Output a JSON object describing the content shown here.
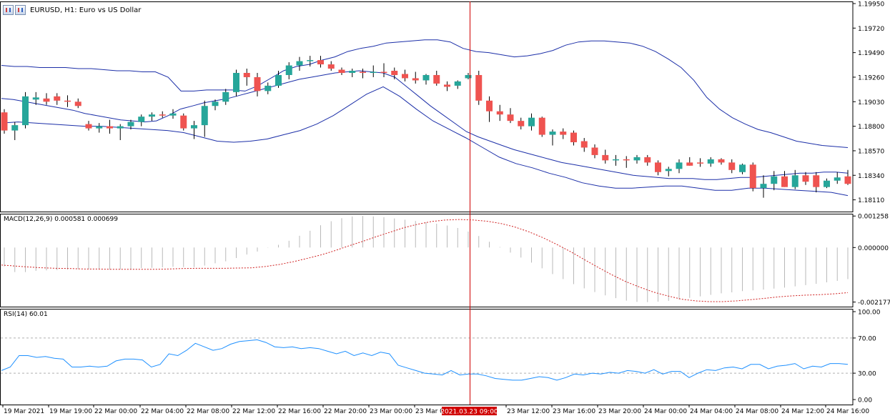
{
  "chart_data": [
    {
      "type": "candlestick",
      "title": "EURUSD, H1:  Euro vs US Dollar",
      "ylim": [
        1.18,
        1.1997
      ],
      "y_ticks": [
        "1.19950",
        "1.19720",
        "1.19490",
        "1.19260",
        "1.19030",
        "1.18800",
        "1.18570",
        "1.18340",
        "1.18110"
      ],
      "x_labels": [
        "19 Mar 2021",
        "19 Mar 19:00",
        "22 Mar 00:00",
        "22 Mar 04:00",
        "22 Mar 08:00",
        "22 Mar 12:00",
        "22 Mar 16:00",
        "22 Mar 20:00",
        "23 Mar 00:00",
        "23 Mar 04:00",
        "23 Mar 12:00",
        "23 Mar 16:00",
        "23 Mar 20:00",
        "24 Mar 00:00",
        "24 Mar 04:00",
        "24 Mar 08:00",
        "24 Mar 12:00",
        "24 Mar 16:00"
      ],
      "crosshair_label": "2021.03.23 09:00",
      "colors": {
        "bull": "#26a69a",
        "bear": "#ef5350",
        "bands": "#1c2fa8",
        "crosshair": "#d00000"
      },
      "candles": [
        [
          1.1893,
          1.1896,
          1.1873,
          1.1876
        ],
        [
          1.1876,
          1.1884,
          1.1867,
          1.1881
        ],
        [
          1.1881,
          1.1912,
          1.1878,
          1.1908
        ],
        [
          1.1905,
          1.1912,
          1.19,
          1.1907
        ],
        [
          1.1906,
          1.1911,
          1.19,
          1.1903
        ],
        [
          1.1908,
          1.1911,
          1.19,
          1.1904
        ],
        [
          1.1904,
          1.1909,
          1.1898,
          1.1903
        ],
        [
          1.1903,
          1.1906,
          1.1897,
          1.1899
        ],
        [
          1.1882,
          1.1885,
          1.1876,
          1.1878
        ],
        [
          1.1878,
          1.1883,
          1.1874,
          1.188
        ],
        [
          1.188,
          1.1886,
          1.1873,
          1.1878
        ],
        [
          1.1878,
          1.1882,
          1.1867,
          1.188
        ],
        [
          1.188,
          1.1886,
          1.1877,
          1.1884
        ],
        [
          1.1884,
          1.1891,
          1.188,
          1.1889
        ],
        [
          1.1889,
          1.1893,
          1.1885,
          1.1891
        ],
        [
          1.1891,
          1.1894,
          1.1888,
          1.189
        ],
        [
          1.189,
          1.1896,
          1.1887,
          1.1892
        ],
        [
          1.189,
          1.1892,
          1.1876,
          1.1878
        ],
        [
          1.1878,
          1.1885,
          1.1868,
          1.1881
        ],
        [
          1.1881,
          1.1904,
          1.187,
          1.1899
        ],
        [
          1.1899,
          1.1905,
          1.1895,
          1.1903
        ],
        [
          1.1903,
          1.1915,
          1.19,
          1.1912
        ],
        [
          1.1912,
          1.1933,
          1.1908,
          1.193
        ],
        [
          1.193,
          1.1934,
          1.1918,
          1.1926
        ],
        [
          1.1926,
          1.193,
          1.1908,
          1.1913
        ],
        [
          1.1913,
          1.1921,
          1.191,
          1.1918
        ],
        [
          1.1918,
          1.1932,
          1.1916,
          1.1928
        ],
        [
          1.1928,
          1.194,
          1.1924,
          1.1937
        ],
        [
          1.1937,
          1.1945,
          1.1932,
          1.1941
        ],
        [
          1.1941,
          1.1946,
          1.1936,
          1.1942
        ],
        [
          1.1942,
          1.1946,
          1.1935,
          1.1938
        ],
        [
          1.1938,
          1.1941,
          1.1932,
          1.1934
        ],
        [
          1.1933,
          1.1935,
          1.1928,
          1.193
        ],
        [
          1.193,
          1.1934,
          1.1926,
          1.1932
        ],
        [
          1.1931,
          1.1934,
          1.1925,
          1.193
        ],
        [
          1.193,
          1.1937,
          1.1926,
          1.1931
        ],
        [
          1.1931,
          1.1939,
          1.1926,
          1.193
        ],
        [
          1.1932,
          1.1935,
          1.1924,
          1.1928
        ],
        [
          1.1929,
          1.1933,
          1.1922,
          1.1925
        ],
        [
          1.1925,
          1.1931,
          1.192,
          1.1923
        ],
        [
          1.1923,
          1.1929,
          1.1919,
          1.1928
        ],
        [
          1.1928,
          1.1932,
          1.1918,
          1.192
        ],
        [
          1.1919,
          1.1922,
          1.1913,
          1.1917
        ],
        [
          1.1918,
          1.1923,
          1.1915,
          1.1922
        ],
        [
          1.1925,
          1.193,
          1.1924,
          1.1928
        ],
        [
          1.1928,
          1.1932,
          1.19,
          1.1904
        ],
        [
          1.1904,
          1.1908,
          1.1884,
          1.1894
        ],
        [
          1.1894,
          1.19,
          1.1885,
          1.1891
        ],
        [
          1.1891,
          1.1897,
          1.1883,
          1.1885
        ],
        [
          1.1885,
          1.1888,
          1.1877,
          1.188
        ],
        [
          1.188,
          1.1892,
          1.1876,
          1.1888
        ],
        [
          1.1888,
          1.1889,
          1.187,
          1.1872
        ],
        [
          1.1872,
          1.1877,
          1.1862,
          1.1875
        ],
        [
          1.1875,
          1.1878,
          1.1868,
          1.1872
        ],
        [
          1.1874,
          1.1876,
          1.1862,
          1.1865
        ],
        [
          1.1866,
          1.1869,
          1.1856,
          1.186
        ],
        [
          1.186,
          1.1863,
          1.185,
          1.1853
        ],
        [
          1.1853,
          1.1858,
          1.1845,
          1.1848
        ],
        [
          1.1848,
          1.1853,
          1.1843,
          1.1849
        ],
        [
          1.1849,
          1.1852,
          1.1841,
          1.1848
        ],
        [
          1.1848,
          1.1853,
          1.1845,
          1.1851
        ],
        [
          1.1851,
          1.1853,
          1.1843,
          1.1846
        ],
        [
          1.1846,
          1.1848,
          1.1834,
          1.1837
        ],
        [
          1.1838,
          1.1842,
          1.1833,
          1.184
        ],
        [
          1.184,
          1.1849,
          1.1836,
          1.1846
        ],
        [
          1.1846,
          1.1851,
          1.1843,
          1.1843
        ],
        [
          1.1846,
          1.185,
          1.1842,
          1.1845
        ],
        [
          1.1845,
          1.1851,
          1.1842,
          1.1849
        ],
        [
          1.1849,
          1.185,
          1.1844,
          1.1846
        ],
        [
          1.1846,
          1.1849,
          1.1836,
          1.1839
        ],
        [
          1.1837,
          1.1845,
          1.1835,
          1.1844
        ],
        [
          1.1844,
          1.1846,
          1.1819,
          1.1822
        ],
        [
          1.1822,
          1.1834,
          1.1813,
          1.1826
        ],
        [
          1.1826,
          1.1838,
          1.182,
          1.1833
        ],
        [
          1.1833,
          1.1838,
          1.1823,
          1.1823
        ],
        [
          1.1823,
          1.1839,
          1.1821,
          1.1834
        ],
        [
          1.1834,
          1.1837,
          1.1825,
          1.1828
        ],
        [
          1.1834,
          1.1837,
          1.1818,
          1.1823
        ],
        [
          1.1823,
          1.1831,
          1.1822,
          1.1829
        ],
        [
          1.1829,
          1.1837,
          1.1826,
          1.1832
        ],
        [
          1.1833,
          1.1839,
          1.1825,
          1.1826
        ]
      ],
      "bands_upper": [
        1.1937,
        1.1936,
        1.1936,
        1.1935,
        1.1935,
        1.1935,
        1.1934,
        1.1934,
        1.1933,
        1.1932,
        1.1932,
        1.1931,
        1.1931,
        1.1926,
        1.1913,
        1.1913,
        1.1914,
        1.1914,
        1.1914,
        1.1913,
        1.1918,
        1.1925,
        1.1932,
        1.1936,
        1.1938,
        1.1942,
        1.1945,
        1.195,
        1.1953,
        1.1955,
        1.1958,
        1.1959,
        1.196,
        1.1961,
        1.1961,
        1.1959,
        1.1953,
        1.195,
        1.1949,
        1.1947,
        1.1945,
        1.1946,
        1.1948,
        1.1951,
        1.1956,
        1.1959,
        1.196,
        1.196,
        1.1959,
        1.1958,
        1.1955,
        1.195,
        1.1943,
        1.1935,
        1.1923,
        1.1907,
        1.1896,
        1.1888,
        1.1882,
        1.1877,
        1.1874,
        1.187,
        1.1866,
        1.1864,
        1.1862,
        1.1861,
        1.186
      ],
      "bands_middle": [
        1.1906,
        1.1905,
        1.1903,
        1.1901,
        1.1899,
        1.1897,
        1.1895,
        1.1892,
        1.189,
        1.1888,
        1.1886,
        1.1885,
        1.1884,
        1.1885,
        1.189,
        1.1896,
        1.1899,
        1.1902,
        1.1904,
        1.1906,
        1.1909,
        1.1912,
        1.1915,
        1.1918,
        1.1921,
        1.1924,
        1.1926,
        1.1928,
        1.193,
        1.1931,
        1.1932,
        1.1931,
        1.193,
        1.1926,
        1.1917,
        1.1908,
        1.1899,
        1.1891,
        1.1883,
        1.1875,
        1.187,
        1.1866,
        1.1862,
        1.1858,
        1.1855,
        1.1852,
        1.1849,
        1.1846,
        1.1844,
        1.1842,
        1.184,
        1.1838,
        1.1836,
        1.1834,
        1.1833,
        1.1832,
        1.1831,
        1.1831,
        1.1831,
        1.183,
        1.183,
        1.1831,
        1.1832,
        1.1832,
        1.1833,
        1.1834,
        1.1835,
        1.1836,
        1.1836,
        1.1837,
        1.1837,
        1.1836
      ],
      "bands_lower": [
        1.1883,
        1.1884,
        1.1883,
        1.1882,
        1.1881,
        1.188,
        1.188,
        1.1879,
        1.1878,
        1.1877,
        1.1876,
        1.1874,
        1.187,
        1.1866,
        1.1865,
        1.1866,
        1.1868,
        1.1872,
        1.1876,
        1.1882,
        1.189,
        1.19,
        1.191,
        1.1917,
        1.1908,
        1.1896,
        1.1885,
        1.1877,
        1.1869,
        1.186,
        1.1851,
        1.1845,
        1.1841,
        1.1836,
        1.1832,
        1.1827,
        1.1824,
        1.1822,
        1.1822,
        1.1823,
        1.1824,
        1.1824,
        1.1822,
        1.182,
        1.182,
        1.1822,
        1.1822,
        1.1821,
        1.182,
        1.1819,
        1.1818,
        1.1815
      ]
    },
    {
      "type": "bar",
      "title": "MACD(12,26,9) 0.000581 0.000699",
      "ylim": [
        -0.00236,
        0.00135
      ],
      "y_ticks": [
        "0.001258",
        "0.000000",
        "-0.002177"
      ],
      "colors": {
        "hist": "#b9b9b9",
        "signal": "#d02020"
      },
      "histogram": [
        -0.00075,
        -0.00098,
        -0.00098,
        -0.00093,
        -0.00091,
        -0.0009,
        -0.00088,
        -0.00086,
        -0.00086,
        -0.00087,
        -0.00088,
        -0.00087,
        -0.00086,
        -0.00082,
        -0.00081,
        -0.00079,
        -0.00077,
        -0.00078,
        -0.00078,
        -0.00072,
        -0.00063,
        -0.00055,
        -0.00042,
        -0.00028,
        -0.00016,
        -1e-05,
        0.00011,
        0.00027,
        0.00047,
        0.00067,
        0.00089,
        0.00105,
        0.00117,
        0.00124,
        0.00126,
        0.00124,
        0.00121,
        0.00116,
        0.00111,
        0.00106,
        0.00101,
        0.00095,
        0.00088,
        0.00078,
        0.00064,
        0.00046,
        0.00023,
        2e-05,
        -0.0002,
        -0.0004,
        -0.0006,
        -0.00083,
        -0.00106,
        -0.00126,
        -0.00146,
        -0.00163,
        -0.00178,
        -0.00191,
        -0.00202,
        -0.00212,
        -0.00217,
        -0.00218,
        -0.00216,
        -0.00213,
        -0.00207,
        -0.00201,
        -0.00195,
        -0.00189,
        -0.00183,
        -0.00179,
        -0.00174,
        -0.00171,
        -0.00168,
        -0.00164,
        -0.0016,
        -0.00155,
        -0.0015,
        -0.00145,
        -0.00139,
        -0.00133,
        -0.00126
      ],
      "signal": [
        -0.0007,
        -0.00074,
        -0.00078,
        -0.00081,
        -0.00083,
        -0.00084,
        -0.00086,
        -0.00086,
        -0.00087,
        -0.00087,
        -0.00087,
        -0.00087,
        -0.00086,
        -0.00084,
        -0.00083,
        -0.00083,
        -0.00083,
        -0.00082,
        -0.00081,
        -0.00076,
        -0.00068,
        -0.00057,
        -0.00044,
        -0.0003,
        -0.00013,
        6e-05,
        0.00024,
        0.00043,
        0.00061,
        0.00079,
        0.00093,
        0.00104,
        0.0011,
        0.00112,
        0.0011,
        0.00105,
        0.00096,
        0.00082,
        0.00063,
        0.0004,
        0.00013,
        -0.00016,
        -0.00048,
        -0.00079,
        -0.00109,
        -0.00136,
        -0.00158,
        -0.00178,
        -0.00193,
        -0.00206,
        -0.00213,
        -0.00216,
        -0.00216,
        -0.00213,
        -0.00208,
        -0.00203,
        -0.00197,
        -0.00193,
        -0.0019,
        -0.00188,
        -0.00185,
        -0.0018
      ]
    },
    {
      "type": "line",
      "title": "RSI(14) 60.01",
      "ylim": [
        0,
        100
      ],
      "y_ticks": [
        "100.00",
        "70.00",
        "30.00",
        "0.00"
      ],
      "levels": [
        70,
        30
      ],
      "colors": {
        "line": "#1e90ff",
        "level": "#b0b0b0"
      },
      "values": [
        33,
        37,
        50,
        50,
        48,
        49,
        47,
        46,
        37,
        37,
        38,
        37,
        38,
        44,
        46,
        46,
        45,
        37,
        40,
        52,
        50,
        56,
        64,
        60,
        56,
        58,
        63,
        66,
        67,
        68,
        65,
        60,
        59,
        60,
        58,
        59,
        58,
        55,
        52,
        55,
        50,
        53,
        50,
        54,
        52,
        39,
        36,
        33,
        30,
        29,
        28,
        33,
        28,
        29,
        29,
        27,
        24,
        23,
        22,
        22,
        24,
        26,
        25,
        22,
        25,
        29,
        28,
        30,
        29,
        31,
        30,
        33,
        32,
        30,
        34,
        29,
        32,
        32,
        25,
        30,
        34,
        33,
        36,
        37,
        35,
        40,
        40,
        35,
        38,
        39,
        41,
        35,
        38,
        37,
        41,
        41,
        40
      ]
    }
  ]
}
